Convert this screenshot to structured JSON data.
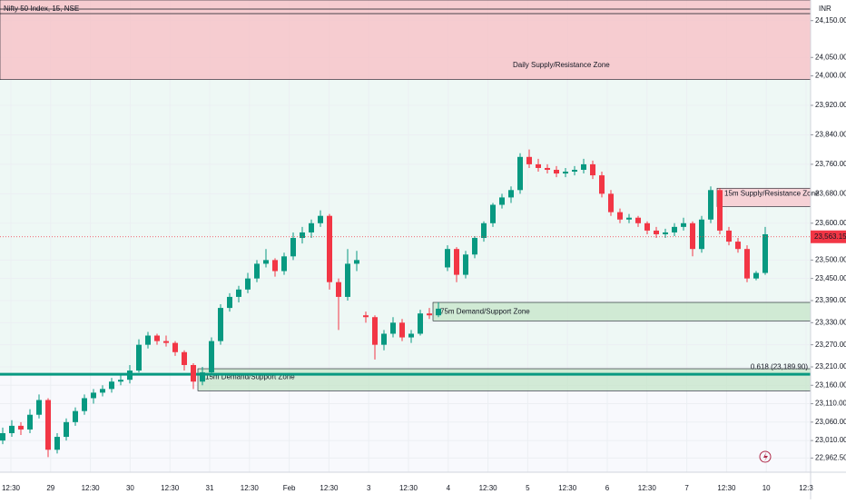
{
  "chart_data": {
    "type": "candlestick",
    "title": "Nifty 50 Index, 15, NSE",
    "currency": "INR",
    "ylim": [
      22924,
      24206
    ],
    "yticks": [
      {
        "value": 24150,
        "label": "24,150.00"
      },
      {
        "value": 24050,
        "label": "24,050.00"
      },
      {
        "value": 24000,
        "label": "24,000.00"
      },
      {
        "value": 23920,
        "label": "23,920.00"
      },
      {
        "value": 23840,
        "label": "23,840.00"
      },
      {
        "value": 23760,
        "label": "23,760.00"
      },
      {
        "value": 23680,
        "label": "23,680.00"
      },
      {
        "value": 23600,
        "label": "23,600.00"
      },
      {
        "value": 23500,
        "label": "23,500.00"
      },
      {
        "value": 23450,
        "label": "23,450.00"
      },
      {
        "value": 23390,
        "label": "23,390.00"
      },
      {
        "value": 23330,
        "label": "23,330.00"
      },
      {
        "value": 23270,
        "label": "23,270.00"
      },
      {
        "value": 23210,
        "label": "23,210.00"
      },
      {
        "value": 23160,
        "label": "23,160.00"
      },
      {
        "value": 23110,
        "label": "23,110.00"
      },
      {
        "value": 23060,
        "label": "23,060.00"
      },
      {
        "value": 23010,
        "label": "23,010.00"
      },
      {
        "value": 22962.5,
        "label": "22,962.50"
      }
    ],
    "categories": [
      "12:30",
      "29",
      "12:30",
      "30",
      "12:30",
      "31",
      "12:30",
      "Feb",
      "12:30",
      "3",
      "12:30",
      "4",
      "12:30",
      "5",
      "12:30",
      "6",
      "12:30",
      "7",
      "12:30",
      "10",
      "12:3"
    ],
    "up_color": "#089981",
    "down_color": "#f23645",
    "ohlc": [
      [
        23010,
        23045,
        23000,
        23030
      ],
      [
        23030,
        23065,
        23020,
        23050
      ],
      [
        23050,
        23060,
        23025,
        23040
      ],
      [
        23040,
        23095,
        23030,
        23080
      ],
      [
        23080,
        23135,
        23070,
        23120
      ],
      [
        23120,
        23125,
        22965,
        22985
      ],
      [
        22985,
        23030,
        22975,
        23020
      ],
      [
        23020,
        23070,
        23010,
        23060
      ],
      [
        23060,
        23100,
        23050,
        23090
      ],
      [
        23090,
        23135,
        23080,
        23125
      ],
      [
        23125,
        23150,
        23110,
        23140
      ],
      [
        23140,
        23160,
        23130,
        23150
      ],
      [
        23150,
        23180,
        23140,
        23170
      ],
      [
        23170,
        23190,
        23160,
        23175
      ],
      [
        23175,
        23215,
        23165,
        23200
      ],
      [
        23200,
        23285,
        23195,
        23270
      ],
      [
        23270,
        23305,
        23260,
        23295
      ],
      [
        23295,
        23300,
        23270,
        23280
      ],
      [
        23280,
        23295,
        23265,
        23275
      ],
      [
        23275,
        23280,
        23240,
        23250
      ],
      [
        23250,
        23255,
        23200,
        23215
      ],
      [
        23215,
        23220,
        23150,
        23170
      ],
      [
        23170,
        23210,
        23160,
        23195
      ],
      [
        23195,
        23290,
        23190,
        23280
      ],
      [
        23280,
        23380,
        23270,
        23370
      ],
      [
        23370,
        23410,
        23360,
        23400
      ],
      [
        23400,
        23430,
        23385,
        23420
      ],
      [
        23420,
        23465,
        23410,
        23450
      ],
      [
        23450,
        23500,
        23440,
        23490
      ],
      [
        23490,
        23530,
        23480,
        23500
      ],
      [
        23500,
        23505,
        23455,
        23470
      ],
      [
        23470,
        23520,
        23460,
        23510
      ],
      [
        23510,
        23575,
        23500,
        23560
      ],
      [
        23560,
        23590,
        23545,
        23575
      ],
      [
        23575,
        23610,
        23560,
        23600
      ],
      [
        23600,
        23635,
        23590,
        23620
      ],
      [
        23620,
        23625,
        23420,
        23440
      ],
      [
        23440,
        23450,
        23310,
        23400
      ],
      [
        23400,
        23530,
        23390,
        23490
      ],
      [
        23490,
        23525,
        23470,
        23500
      ],
      [
        23350,
        23360,
        23330,
        23345
      ],
      [
        23345,
        23350,
        23230,
        23270
      ],
      [
        23270,
        23310,
        23255,
        23300
      ],
      [
        23300,
        23345,
        23290,
        23330
      ],
      [
        23330,
        23340,
        23280,
        23290
      ],
      [
        23290,
        23310,
        23275,
        23300
      ],
      [
        23300,
        23365,
        23295,
        23355
      ],
      [
        23355,
        23370,
        23340,
        23350
      ],
      [
        23350,
        23385,
        23345,
        23368
      ],
      [
        23480,
        23540,
        23470,
        23530
      ],
      [
        23530,
        23535,
        23440,
        23460
      ],
      [
        23460,
        23525,
        23450,
        23515
      ],
      [
        23515,
        23565,
        23505,
        23560
      ],
      [
        23560,
        23605,
        23550,
        23600
      ],
      [
        23600,
        23655,
        23590,
        23650
      ],
      [
        23650,
        23680,
        23640,
        23670
      ],
      [
        23670,
        23700,
        23655,
        23690
      ],
      [
        23690,
        23790,
        23680,
        23780
      ],
      [
        23780,
        23800,
        23750,
        23760
      ],
      [
        23760,
        23775,
        23740,
        23750
      ],
      [
        23750,
        23760,
        23735,
        23745
      ],
      [
        23745,
        23755,
        23725,
        23735
      ],
      [
        23735,
        23750,
        23725,
        23740
      ],
      [
        23740,
        23755,
        23730,
        23745
      ],
      [
        23745,
        23775,
        23735,
        23760
      ],
      [
        23760,
        23770,
        23720,
        23730
      ],
      [
        23730,
        23740,
        23670,
        23680
      ],
      [
        23680,
        23690,
        23620,
        23630
      ],
      [
        23630,
        23640,
        23600,
        23610
      ],
      [
        23610,
        23625,
        23600,
        23615
      ],
      [
        23615,
        23620,
        23590,
        23600
      ],
      [
        23600,
        23605,
        23570,
        23580
      ],
      [
        23580,
        23590,
        23560,
        23570
      ],
      [
        23570,
        23585,
        23560,
        23575
      ],
      [
        23575,
        23600,
        23565,
        23590
      ],
      [
        23590,
        23615,
        23580,
        23600
      ],
      [
        23600,
        23605,
        23510,
        23530
      ],
      [
        23530,
        23620,
        23520,
        23610
      ],
      [
        23610,
        23700,
        23600,
        23690
      ],
      [
        23690,
        23695,
        23570,
        23580
      ],
      [
        23580,
        23590,
        23540,
        23550
      ],
      [
        23550,
        23560,
        23520,
        23530
      ],
      [
        23530,
        23540,
        23440,
        23450
      ],
      [
        23450,
        23470,
        23445,
        23465
      ],
      [
        23465,
        23590,
        23460,
        23570
      ]
    ],
    "zones": [
      {
        "label": "Daily Supply/Resistance Zone",
        "low": 23990,
        "high": 24206,
        "color": "#f5c6cb"
      },
      {
        "label": "15m Supply/Resistance Zone",
        "low": 23645,
        "high": 23695,
        "color": "#f8c8ce"
      },
      {
        "label": "75m Demand/Support Zone",
        "low": 23335,
        "high": 23385,
        "color": "#c8e6cc"
      },
      {
        "label": "15m Demand/Support Zone",
        "low": 23145,
        "high": 23205,
        "color": "#c8e6cc"
      }
    ],
    "fib": {
      "label": "0.618 (23,189.90)",
      "value": 23189.9,
      "color": "#089981"
    },
    "last_price": {
      "value": 23563.15,
      "label": "23,563.15",
      "color": "#f23645"
    }
  }
}
